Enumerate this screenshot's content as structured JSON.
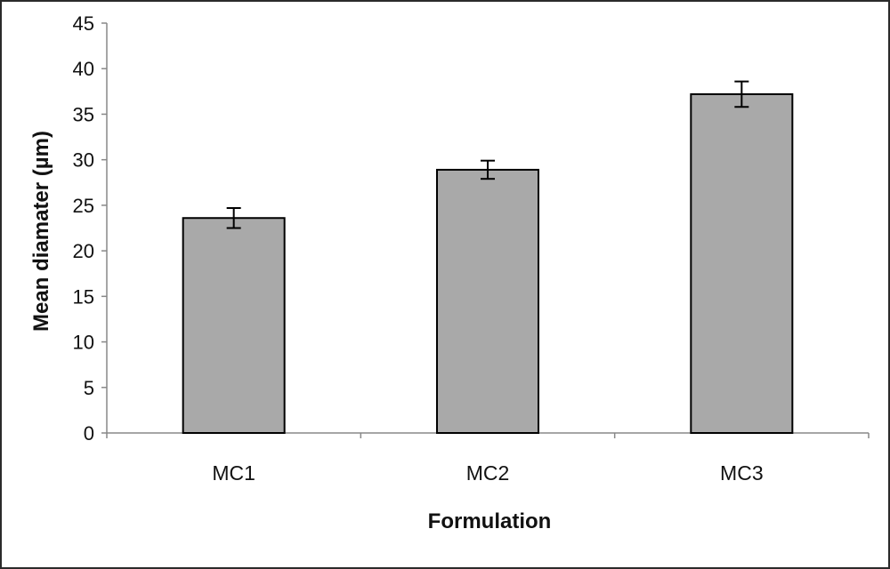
{
  "chart_data": {
    "type": "bar",
    "categories": [
      "MC1",
      "MC2",
      "MC3"
    ],
    "values": [
      23.6,
      28.9,
      37.2
    ],
    "error": [
      1.1,
      1.0,
      1.4
    ],
    "xlabel": "Formulation",
    "ylabel": "Mean diamater (µm)",
    "ylim": [
      0,
      45
    ],
    "yticks": [
      0,
      5,
      10,
      15,
      20,
      25,
      30,
      35,
      40,
      45
    ],
    "grid": false,
    "legend": "none",
    "colors": {
      "bar_fill": "#a9a9a9",
      "bar_stroke": "#000000",
      "axis": "#888888"
    }
  }
}
